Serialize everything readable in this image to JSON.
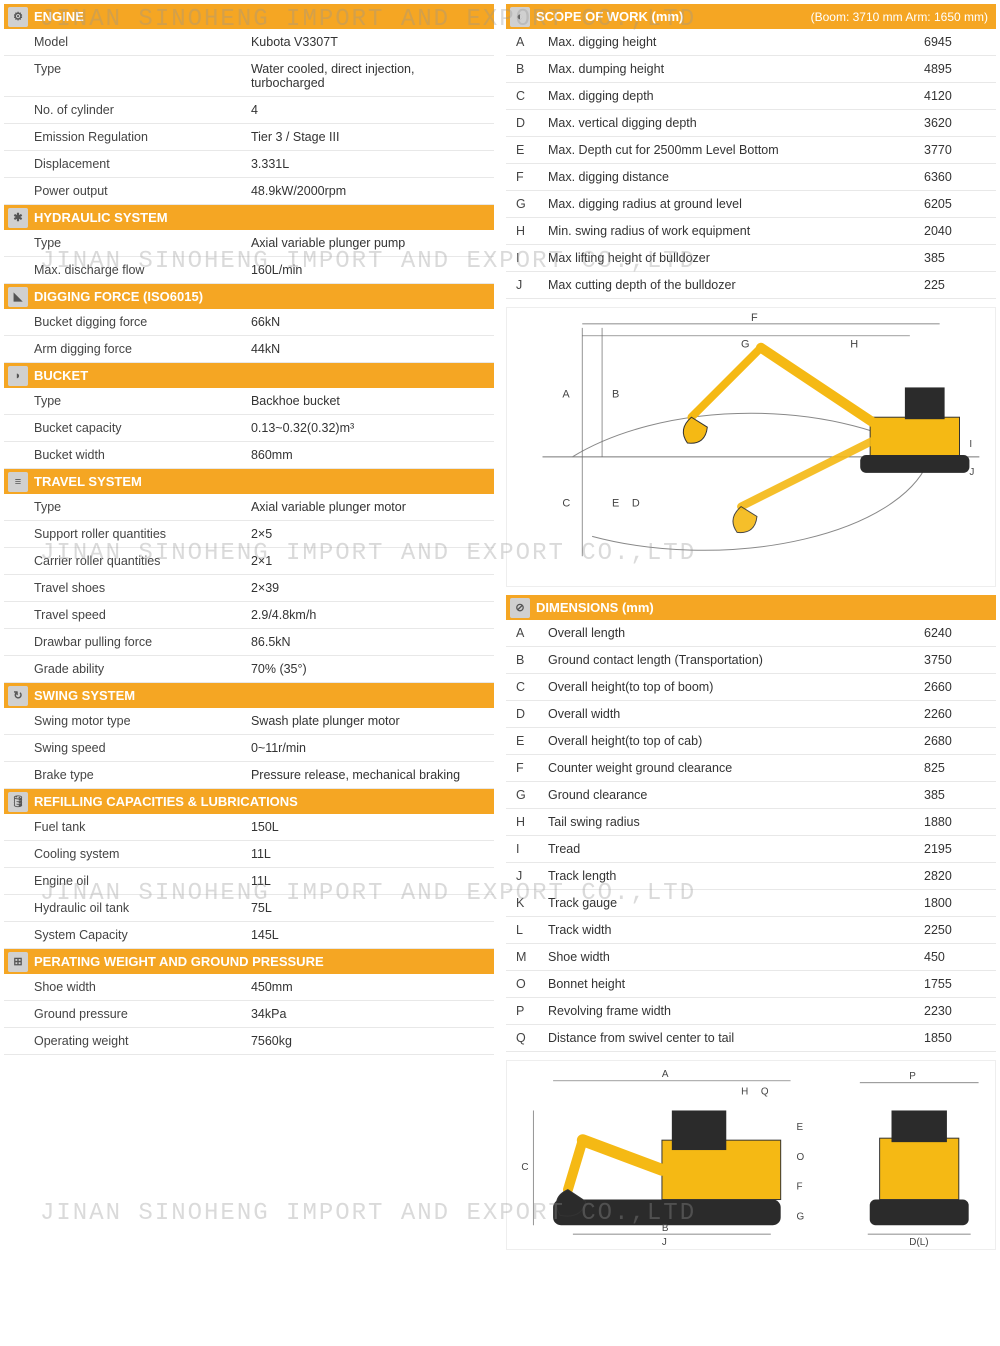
{
  "watermark_text": "JINAN SINOHENG IMPORT AND EXPORT CO.,LTD",
  "colors": {
    "header_bg": "#f5a623",
    "header_text": "#ffffff",
    "icon_bg": "#d0d0d0",
    "border": "#e8e8e8",
    "text": "#333333",
    "excavator_body": "#f5b914",
    "excavator_dark": "#2b2b2b"
  },
  "left_sections": [
    {
      "title": "ENGINE",
      "icon": "⚙",
      "rows": [
        {
          "label": "Model",
          "value": "Kubota V3307T"
        },
        {
          "label": "Type",
          "value": "Water cooled, direct injection, turbocharged"
        },
        {
          "label": "No. of cylinder",
          "value": "4"
        },
        {
          "label": "Emission Regulation",
          "value": "Tier 3 / Stage III"
        },
        {
          "label": "Displacement",
          "value": "3.331L"
        },
        {
          "label": "Power output",
          "value": "48.9kW/2000rpm"
        }
      ]
    },
    {
      "title": "HYDRAULIC SYSTEM",
      "icon": "✱",
      "rows": [
        {
          "label": "Type",
          "value": "Axial variable plunger pump"
        },
        {
          "label": "Max. discharge flow",
          "value": "160L/min"
        }
      ]
    },
    {
      "title": "DIGGING FORCE (ISO6015)",
      "icon": "◣",
      "rows": [
        {
          "label": "Bucket digging force",
          "value": "66kN"
        },
        {
          "label": "Arm digging force",
          "value": "44kN"
        }
      ]
    },
    {
      "title": "BUCKET",
      "icon": "◗",
      "rows": [
        {
          "label": "Type",
          "value": "Backhoe bucket"
        },
        {
          "label": "Bucket capacity",
          "value": "0.13~0.32(0.32)m³"
        },
        {
          "label": "Bucket width",
          "value": "860mm"
        }
      ]
    },
    {
      "title": "TRAVEL SYSTEM",
      "icon": "≡",
      "rows": [
        {
          "label": "Type",
          "value": "Axial variable plunger motor"
        },
        {
          "label": "Support roller quantities",
          "value": "2×5"
        },
        {
          "label": "Carrier roller quantities",
          "value": "2×1"
        },
        {
          "label": "Travel shoes",
          "value": "2×39"
        },
        {
          "label": "Travel speed",
          "value": "2.9/4.8km/h"
        },
        {
          "label": "Drawbar pulling force",
          "value": "86.5kN"
        },
        {
          "label": "Grade ability",
          "value": "70% (35°)"
        }
      ]
    },
    {
      "title": "SWING SYSTEM",
      "icon": "↻",
      "rows": [
        {
          "label": "Swing motor type",
          "value": "Swash plate plunger motor"
        },
        {
          "label": "Swing speed",
          "value": "0~11r/min"
        },
        {
          "label": "Brake type",
          "value": "Pressure release, mechanical braking"
        }
      ]
    },
    {
      "title": "REFILLING CAPACITIES & LUBRICATIONS",
      "icon": "🛢",
      "rows": [
        {
          "label": "Fuel tank",
          "value": "150L"
        },
        {
          "label": "Cooling system",
          "value": "11L"
        },
        {
          "label": "Engine oil",
          "value": "11L"
        },
        {
          "label": "Hydraulic oil tank",
          "value": "75L"
        },
        {
          "label": "System Capacity",
          "value": "145L"
        }
      ]
    },
    {
      "title": "PERATING WEIGHT AND GROUND PRESSURE",
      "icon": "⊞",
      "rows": [
        {
          "label": "Shoe width",
          "value": "450mm"
        },
        {
          "label": "Ground pressure",
          "value": "34kPa"
        },
        {
          "label": "Operating weight",
          "value": "7560kg"
        }
      ]
    }
  ],
  "scope_of_work": {
    "title": "SCOPE OF WORK (mm)",
    "sub": "(Boom: 3710 mm    Arm: 1650 mm)",
    "icon": "◐",
    "rows": [
      {
        "code": "A",
        "label": "Max. digging height",
        "value": "6945"
      },
      {
        "code": "B",
        "label": "Max. dumping height",
        "value": "4895"
      },
      {
        "code": "C",
        "label": "Max. digging depth",
        "value": "4120"
      },
      {
        "code": "D",
        "label": "Max. vertical digging depth",
        "value": "3620"
      },
      {
        "code": "E",
        "label": "Max. Depth cut for 2500mm Level Bottom",
        "value": "3770"
      },
      {
        "code": "F",
        "label": "Max. digging distance",
        "value": "6360"
      },
      {
        "code": "G",
        "label": "Max. digging radius at ground level",
        "value": "6205"
      },
      {
        "code": "H",
        "label": "Min. swing radius of work equipment",
        "value": "2040"
      },
      {
        "code": "I",
        "label": "Max lifting height of bulldozer",
        "value": "385"
      },
      {
        "code": "J",
        "label": "Max cutting depth of the bulldozer",
        "value": "225"
      }
    ]
  },
  "dimensions": {
    "title": "DIMENSIONS (mm)",
    "icon": "⊘",
    "rows": [
      {
        "code": "A",
        "label": "Overall length",
        "value": "6240"
      },
      {
        "code": "B",
        "label": "Ground contact length (Transportation)",
        "value": "3750"
      },
      {
        "code": "C",
        "label": "Overall height(to top of boom)",
        "value": "2660"
      },
      {
        "code": "D",
        "label": "Overall width",
        "value": "2260"
      },
      {
        "code": "E",
        "label": "Overall height(to top of cab)",
        "value": "2680"
      },
      {
        "code": "F",
        "label": "Counter weight ground clearance",
        "value": "825"
      },
      {
        "code": "G",
        "label": "Ground clearance",
        "value": "385"
      },
      {
        "code": "H",
        "label": "Tail swing radius",
        "value": "1880"
      },
      {
        "code": "I",
        "label": "Tread",
        "value": "2195"
      },
      {
        "code": "J",
        "label": "Track length",
        "value": "2820"
      },
      {
        "code": "K",
        "label": "Track gauge",
        "value": "1800"
      },
      {
        "code": "L",
        "label": "Track width",
        "value": "2250"
      },
      {
        "code": "M",
        "label": "Shoe width",
        "value": "450"
      },
      {
        "code": "O",
        "label": "Bonnet height",
        "value": "1755"
      },
      {
        "code": "P",
        "label": "Revolving frame width",
        "value": "2230"
      },
      {
        "code": "Q",
        "label": "Distance from swivel center to tail",
        "value": "1850"
      }
    ]
  },
  "diagrams": {
    "reach": {
      "labels": [
        "A",
        "B",
        "C",
        "D",
        "E",
        "F",
        "G",
        "H",
        "I",
        "J"
      ]
    },
    "side_rear": {
      "labels": [
        "A",
        "B",
        "C",
        "E",
        "F",
        "G",
        "H",
        "J",
        "O",
        "P",
        "Q"
      ]
    }
  }
}
